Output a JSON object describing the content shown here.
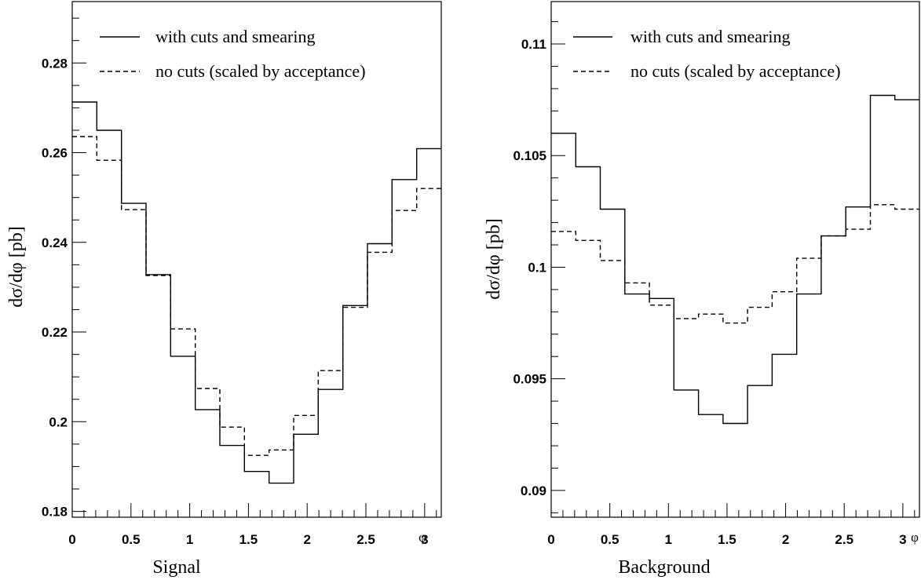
{
  "chart_data": [
    {
      "type": "line",
      "step": true,
      "xlabel": "Signal",
      "xlabel_symbol": "φ",
      "ylabel": "dσ/dφ  [pb]",
      "xlim": [
        0,
        3.1416
      ],
      "ylim": [
        0.1787,
        0.2937
      ],
      "x_ticks": [
        "0",
        "0.5",
        "1",
        "1.5",
        "2",
        "2.5",
        "3"
      ],
      "x_tick_values": [
        0,
        0.5,
        1,
        1.5,
        2,
        2.5,
        3
      ],
      "y_ticks": [
        "0.18",
        "0.2",
        "0.22",
        "0.24",
        "0.26",
        "0.28"
      ],
      "y_tick_values": [
        0.18,
        0.2,
        0.22,
        0.24,
        0.26,
        0.28
      ],
      "bin_edges": [
        0,
        0.2094,
        0.4189,
        0.6283,
        0.8378,
        1.0472,
        1.2566,
        1.4661,
        1.6755,
        1.885,
        2.0944,
        2.3038,
        2.5133,
        2.7227,
        2.9322,
        3.1416
      ],
      "legend_position": "top",
      "series": [
        {
          "name": "with cuts and smearing",
          "style": "solid",
          "values": [
            0.2713,
            0.265,
            0.2487,
            0.2328,
            0.2146,
            0.2027,
            0.1947,
            0.1889,
            0.1863,
            0.1972,
            0.2072,
            0.2259,
            0.2397,
            0.254,
            0.2609
          ]
        },
        {
          "name": "no cuts (scaled by acceptance)",
          "style": "dashed",
          "values": [
            0.2636,
            0.2583,
            0.2473,
            0.2326,
            0.2207,
            0.2074,
            0.1988,
            0.1925,
            0.1937,
            0.2014,
            0.2114,
            0.2255,
            0.2378,
            0.2471,
            0.252
          ]
        }
      ]
    },
    {
      "type": "line",
      "step": true,
      "xlabel": "Background",
      "xlabel_symbol": "φ",
      "ylabel": "dσ/dφ  [pb]",
      "xlim": [
        0,
        3.1416
      ],
      "ylim": [
        0.0888,
        0.1119
      ],
      "x_ticks": [
        "0",
        "0.5",
        "1",
        "1.5",
        "2",
        "2.5",
        "3"
      ],
      "x_tick_values": [
        0,
        0.5,
        1,
        1.5,
        2,
        2.5,
        3
      ],
      "y_ticks": [
        "0.09",
        "0.095",
        "0.1",
        "0.105",
        "0.11"
      ],
      "y_tick_values": [
        0.09,
        0.095,
        0.1,
        0.105,
        0.11
      ],
      "bin_edges": [
        0,
        0.2094,
        0.4189,
        0.6283,
        0.8378,
        1.0472,
        1.2566,
        1.4661,
        1.6755,
        1.885,
        2.0944,
        2.3038,
        2.5133,
        2.7227,
        2.9322,
        3.1416
      ],
      "legend_position": "top",
      "series": [
        {
          "name": "with cuts and smearing",
          "style": "solid",
          "values": [
            0.106,
            0.1045,
            0.1026,
            0.0988,
            0.0986,
            0.0945,
            0.0934,
            0.093,
            0.0947,
            0.0961,
            0.0988,
            0.1014,
            0.1027,
            0.1077,
            0.1075
          ]
        },
        {
          "name": "no cuts (scaled by acceptance)",
          "style": "dashed",
          "values": [
            0.1016,
            0.1012,
            0.1003,
            0.0993,
            0.0983,
            0.0977,
            0.0979,
            0.0975,
            0.0982,
            0.0989,
            0.1004,
            0.1014,
            0.1017,
            0.1028,
            0.1026
          ]
        }
      ]
    }
  ]
}
